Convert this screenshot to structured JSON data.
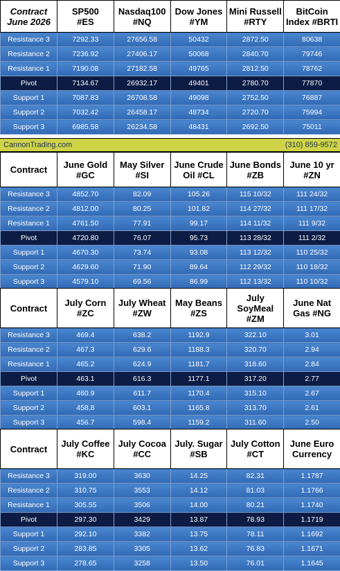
{
  "banner": {
    "site": "CannonTrading.com",
    "phone": "(310) 859-9572"
  },
  "row_labels": [
    "Resistance 3",
    "Resistance 2",
    "Resistance 1",
    "Pivot",
    "Support 1",
    "Support 2",
    "Support 3"
  ],
  "blocks": [
    {
      "label_line1": "Contract",
      "label_line2": "June 2026",
      "contracts": [
        {
          "line1": "SP500",
          "line2": "#ES"
        },
        {
          "line1": "Nasdaq100",
          "line2": "#NQ"
        },
        {
          "line1": "Dow Jones",
          "line2": "#YM"
        },
        {
          "line1": "Mini Russell",
          "line2": "#RTY"
        },
        {
          "line1": "BitCoin",
          "line2": "Index #BRTI"
        }
      ],
      "rows": [
        [
          "7292.33",
          "27656.58",
          "50432",
          "2872.50",
          "80638"
        ],
        [
          "7236.92",
          "27406.17",
          "50068",
          "2840.70",
          "79746"
        ],
        [
          "7190.08",
          "27182.58",
          "49765",
          "2812.50",
          "78762"
        ],
        [
          "7134.67",
          "26932.17",
          "49401",
          "2780.70",
          "77870"
        ],
        [
          "7087.83",
          "26708.58",
          "49098",
          "2752.50",
          "76887"
        ],
        [
          "7032.42",
          "26458.17",
          "48734",
          "2720.70",
          "75994"
        ],
        [
          "6985.58",
          "26234.58",
          "48431",
          "2692.50",
          "75011"
        ]
      ]
    },
    {
      "label_line1": "Contract",
      "label_line2": "",
      "contracts": [
        {
          "line1": "June Gold",
          "line2": "#GC"
        },
        {
          "line1": "May Silver",
          "line2": "#SI"
        },
        {
          "line1": "June Crude",
          "line2": "Oil #CL"
        },
        {
          "line1": "June Bonds",
          "line2": "#ZB"
        },
        {
          "line1": "June 10 yr",
          "line2": "#ZN"
        }
      ],
      "rows": [
        [
          "4852.70",
          "82.09",
          "105.26",
          "115 10/32",
          "111 24/32"
        ],
        [
          "4812.00",
          "80.25",
          "101.82",
          "114 27/32",
          "111 17/32"
        ],
        [
          "4761.50",
          "77.91",
          "99.17",
          "114 11/32",
          "111  9/32"
        ],
        [
          "4720.80",
          "76.07",
          "95.73",
          "113 28/32",
          "111  2/32"
        ],
        [
          "4670.30",
          "73.74",
          "93.08",
          "113 12/32",
          "110 25/32"
        ],
        [
          "4629.60",
          "71.90",
          "89.64",
          "112 29/32",
          "110 18/32"
        ],
        [
          "4579.10",
          "69.56",
          "86.99",
          "112 13/32",
          "110 10/32"
        ]
      ]
    },
    {
      "label_line1": "Contract",
      "label_line2": "",
      "contracts": [
        {
          "line1": "July Corn",
          "line2": "#ZC"
        },
        {
          "line1": "July  Wheat",
          "line2": "#ZW"
        },
        {
          "line1": "May Beans",
          "line2": "#ZS"
        },
        {
          "line1": "July SoyMeal",
          "line2": "#ZM"
        },
        {
          "line1": "June Nat",
          "line2": "Gas #NG"
        }
      ],
      "rows": [
        [
          "469.4",
          "638.2",
          "1192.9",
          "322.10",
          "3.01"
        ],
        [
          "467.3",
          "629.6",
          "1188.3",
          "320.70",
          "2.94"
        ],
        [
          "465.2",
          "624.9",
          "1181.7",
          "318.60",
          "2.84"
        ],
        [
          "463.1",
          "616.3",
          "1177.1",
          "317.20",
          "2.77"
        ],
        [
          "460.9",
          "611.7",
          "1170.4",
          "315.10",
          "2.67"
        ],
        [
          "458.8",
          "603.1",
          "1165.8",
          "313.70",
          "2.61"
        ],
        [
          "456.7",
          "598.4",
          "1159.2",
          "311.60",
          "2.50"
        ]
      ]
    },
    {
      "label_line1": "Contract",
      "label_line2": "",
      "contracts": [
        {
          "line1": "July Coffee",
          "line2": "#KC"
        },
        {
          "line1": "July Cocoa",
          "line2": "#CC"
        },
        {
          "line1": "July. Sugar",
          "line2": "#SB"
        },
        {
          "line1": "July Cotton",
          "line2": "#CT"
        },
        {
          "line1": "June Euro",
          "line2": "Currency"
        }
      ],
      "rows": [
        [
          "319.00",
          "3630",
          "14.25",
          "82.31",
          "1.1787"
        ],
        [
          "310.75",
          "3553",
          "14.12",
          "81.03",
          "1.1766"
        ],
        [
          "305.55",
          "3506",
          "14.00",
          "80.21",
          "1.1740"
        ],
        [
          "297.30",
          "3429",
          "13.87",
          "78.93",
          "1.1719"
        ],
        [
          "292.10",
          "3382",
          "13.75",
          "78.11",
          "1.1692"
        ],
        [
          "283.85",
          "3305",
          "13.62",
          "76.83",
          "1.1671"
        ],
        [
          "278.65",
          "3258",
          "13.50",
          "76.01",
          "1.1645"
        ]
      ]
    }
  ]
}
